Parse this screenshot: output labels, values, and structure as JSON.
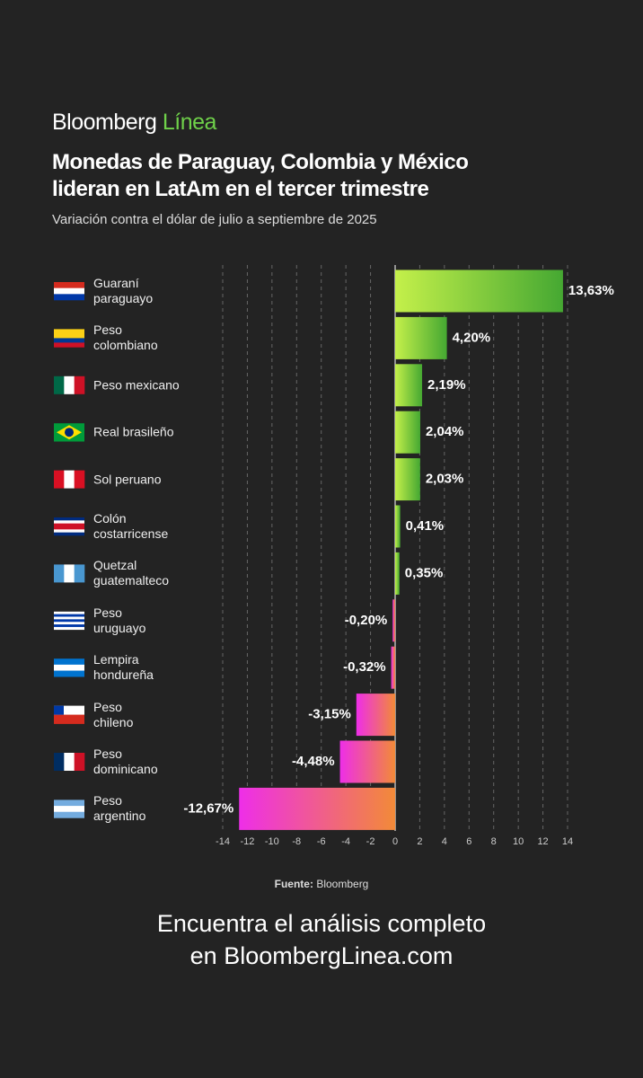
{
  "brand": {
    "name": "Bloomberg",
    "accent": "Línea"
  },
  "chart_data": {
    "type": "hbar",
    "title": "Monedas de Paraguay, Colombia y México\nlideran en LatAm en el tercer trimestre",
    "subtitle": "Variación contra el dólar de julio a septiembre de 2025",
    "categories": [
      "Guaraní\nparaguayo",
      "Peso\ncolombiano",
      "Peso mexicano",
      "Real brasileño",
      "Sol peruano",
      "Colón\ncostarricense",
      "Quetzal\nguatemalteco",
      "Peso\nuruguayo",
      "Lempira\nhondureña",
      "Peso\nchileno",
      "Peso\ndominicano",
      "Peso\nargentino"
    ],
    "values": [
      13.63,
      4.2,
      2.19,
      2.04,
      2.03,
      0.41,
      0.35,
      -0.2,
      -0.32,
      -3.15,
      -4.48,
      -12.67
    ],
    "value_labels": [
      "13,63%",
      "4,20%",
      "2,19%",
      "2,04%",
      "2,03%",
      "0,41%",
      "0,35%",
      "-0,20%",
      "-0,32%",
      "-3,15%",
      "-4,48%",
      "-12,67%"
    ],
    "positive_colors": [
      "#c4f04a",
      "#45a832"
    ],
    "negative_colors": [
      "#ee2ee8",
      "#f28a38"
    ],
    "xlim": [
      -14,
      14
    ],
    "xticks": [
      -14,
      -12,
      -10,
      -8,
      -6,
      -4,
      -2,
      0,
      2,
      4,
      6,
      8,
      10,
      12,
      14
    ],
    "grid": true,
    "source_label": "Fuente:",
    "source": "Bloomberg"
  },
  "footer": "Encuentra el análisis completo\nen BloombergLinea.com"
}
